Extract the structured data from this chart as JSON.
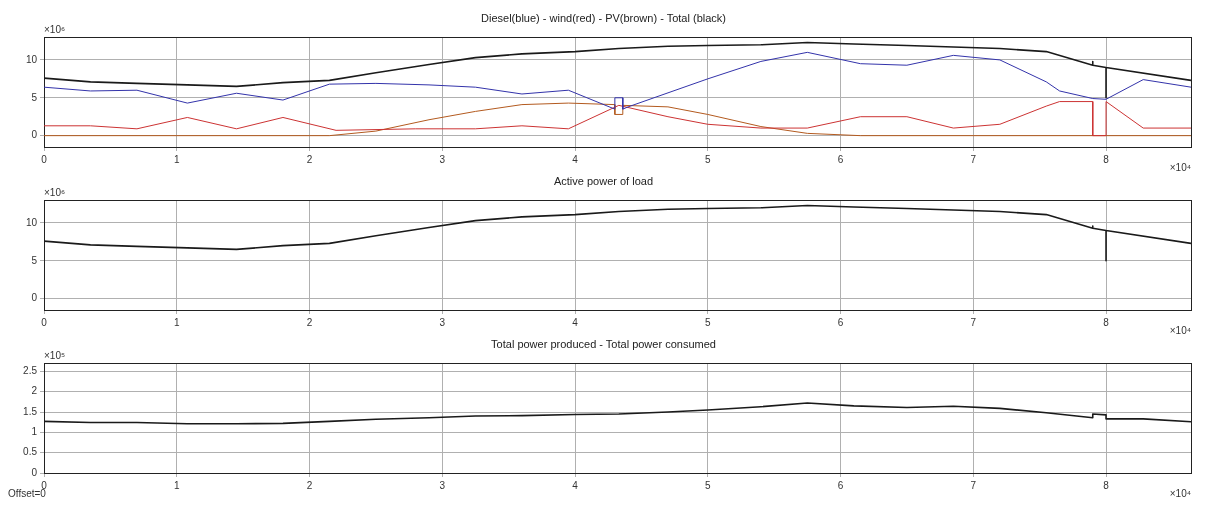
{
  "chart_data": [
    {
      "type": "line",
      "title": "Diesel(blue) - wind(red) - PV(brown) - Total (black)",
      "annotations": [
        "×10⁶",
        "×10⁴"
      ],
      "xlim": [
        0,
        8.64
      ],
      "xticks": [
        0,
        1,
        2,
        3,
        4,
        5,
        6,
        7,
        8
      ],
      "ylim": [
        -1.5,
        13
      ],
      "yticks": [
        0,
        5,
        10
      ],
      "grid": true,
      "legend": false,
      "marker": "none",
      "line_style": "solid",
      "series": [
        {
          "color": "#3333aa",
          "x": [
            0,
            0.35,
            0.7,
            1.08,
            1.45,
            1.8,
            2.15,
            2.5,
            2.9,
            3.25,
            3.6,
            3.95,
            4.3,
            4.3,
            4.36,
            4.36,
            4.4,
            5.0,
            5.4,
            5.75,
            6.15,
            6.5,
            6.85,
            7.2,
            7.55,
            7.65,
            7.9,
            8.0,
            8.28,
            8.64
          ],
          "values": [
            6.4,
            5.9,
            6.0,
            4.3,
            5.6,
            4.7,
            6.8,
            6.9,
            6.7,
            6.4,
            5.5,
            6.0,
            3.5,
            5.0,
            5.0,
            3.5,
            3.8,
            7.5,
            9.8,
            11.0,
            9.5,
            9.3,
            10.6,
            10.0,
            7.1,
            5.9,
            4.9,
            4.8,
            7.4,
            6.4
          ]
        },
        {
          "color": "#cc3333",
          "x": [
            0,
            0.35,
            0.7,
            1.08,
            1.45,
            1.8,
            2.2,
            2.8,
            3.25,
            3.6,
            3.95,
            4.33,
            4.7,
            5.0,
            5.4,
            5.75,
            6.15,
            6.5,
            6.85,
            7.2,
            7.55,
            7.65,
            7.9,
            7.9,
            8.0,
            8.0,
            8.28,
            8.64
          ],
          "values": [
            1.3,
            1.3,
            0.9,
            2.4,
            0.9,
            2.4,
            0.7,
            0.9,
            0.9,
            1.3,
            0.9,
            4.0,
            2.5,
            1.5,
            1.0,
            1.0,
            2.5,
            2.5,
            1.0,
            1.5,
            3.9,
            4.5,
            4.5,
            0,
            0,
            4.5,
            1.0,
            1.0
          ]
        },
        {
          "color": "#b35a1f",
          "x": [
            0,
            2.15,
            2.5,
            2.9,
            3.25,
            3.6,
            3.95,
            4.3,
            4.3,
            4.36,
            4.36,
            4.7,
            5.0,
            5.4,
            5.75,
            6.15,
            8.64
          ],
          "values": [
            0,
            0,
            0.6,
            2.1,
            3.2,
            4.1,
            4.3,
            4.1,
            2.8,
            2.8,
            4.0,
            3.8,
            2.8,
            1.2,
            0.3,
            0,
            0
          ]
        },
        {
          "color": "#1a1a1a",
          "x": [
            0,
            0.35,
            0.7,
            1.08,
            1.45,
            1.8,
            2.15,
            2.5,
            2.9,
            3.25,
            3.6,
            4.0,
            4.33,
            4.7,
            5.0,
            5.4,
            5.75,
            6.1,
            6.5,
            6.85,
            7.2,
            7.55,
            7.9,
            7.9,
            7.9,
            8.0,
            8.0,
            8.0,
            8.64
          ],
          "values": [
            7.6,
            7.1,
            6.9,
            6.7,
            6.5,
            7.0,
            7.3,
            8.3,
            9.4,
            10.3,
            10.8,
            11.1,
            11.5,
            11.8,
            11.9,
            12.0,
            12.3,
            12.1,
            11.9,
            11.7,
            11.5,
            11.1,
            9.3,
            9.8,
            9.3,
            9.0,
            5.0,
            9.0,
            7.3
          ]
        }
      ]
    },
    {
      "type": "line",
      "title": "Active power of load",
      "annotations": [
        "×10⁶",
        "×10⁴"
      ],
      "xlim": [
        0,
        8.64
      ],
      "xticks": [
        0,
        1,
        2,
        3,
        4,
        5,
        6,
        7,
        8
      ],
      "ylim": [
        -1.5,
        13
      ],
      "yticks": [
        0,
        5,
        10
      ],
      "grid": true,
      "legend": false,
      "marker": "none",
      "line_style": "solid",
      "series": [
        {
          "color": "#1a1a1a",
          "x": [
            0,
            0.35,
            0.7,
            1.08,
            1.45,
            1.8,
            2.15,
            2.5,
            2.9,
            3.25,
            3.6,
            4.0,
            4.33,
            4.7,
            5.0,
            5.4,
            5.75,
            6.1,
            6.5,
            6.85,
            7.2,
            7.55,
            7.9,
            7.9,
            7.9,
            8.0,
            8.0,
            8.0,
            8.64
          ],
          "values": [
            7.6,
            7.1,
            6.9,
            6.7,
            6.5,
            7.0,
            7.3,
            8.3,
            9.4,
            10.3,
            10.8,
            11.1,
            11.5,
            11.8,
            11.9,
            12.0,
            12.3,
            12.1,
            11.9,
            11.7,
            11.5,
            11.1,
            9.3,
            9.6,
            9.3,
            9.0,
            5.0,
            9.0,
            7.3
          ]
        }
      ]
    },
    {
      "type": "line",
      "title": "Total power produced - Total power consumed",
      "annotations": [
        "×10⁵",
        "×10⁴",
        "Offset=0"
      ],
      "xlim": [
        0,
        8.64
      ],
      "xticks": [
        0,
        1,
        2,
        3,
        4,
        5,
        6,
        7,
        8
      ],
      "ylim": [
        0,
        2.7
      ],
      "yticks": [
        0,
        0.5,
        1,
        1.5,
        2,
        2.5
      ],
      "grid": true,
      "legend": false,
      "marker": "none",
      "line_style": "solid",
      "series": [
        {
          "color": "#1a1a1a",
          "x": [
            0,
            0.35,
            0.7,
            1.08,
            1.45,
            1.8,
            2.15,
            2.5,
            2.9,
            3.25,
            3.6,
            4.0,
            4.33,
            4.7,
            5.0,
            5.4,
            5.75,
            6.1,
            6.5,
            6.85,
            7.2,
            7.55,
            7.9,
            7.9,
            8.0,
            8.0,
            8.28,
            8.64
          ],
          "values": [
            1.27,
            1.24,
            1.24,
            1.21,
            1.21,
            1.22,
            1.27,
            1.32,
            1.36,
            1.4,
            1.41,
            1.44,
            1.45,
            1.5,
            1.55,
            1.63,
            1.72,
            1.65,
            1.61,
            1.64,
            1.59,
            1.48,
            1.36,
            1.45,
            1.43,
            1.33,
            1.33,
            1.26
          ]
        }
      ]
    }
  ]
}
